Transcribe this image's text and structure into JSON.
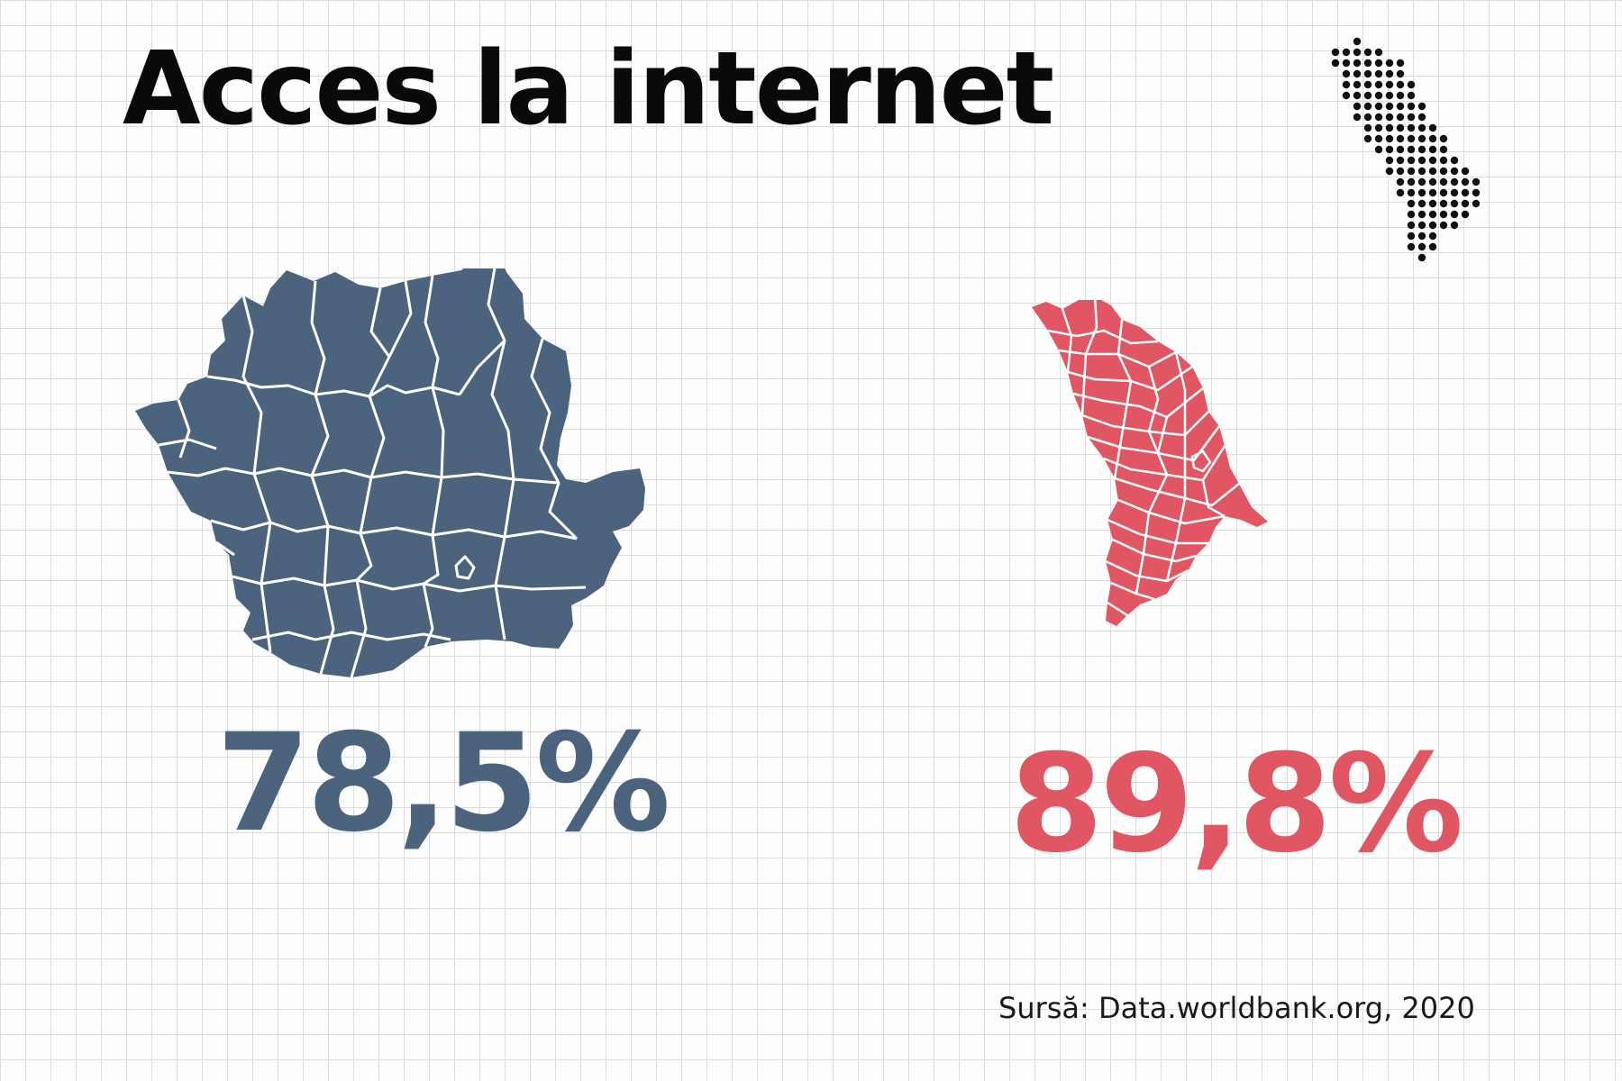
{
  "title": "Acces la internet",
  "colors": {
    "romania": "#4b637d",
    "moldova": "#e05663",
    "title": "#0a0a0a",
    "border_lines": "#ffffff"
  },
  "icons": {
    "logo": "moldova-dot-map-icon",
    "romania_map": "romania-counties-map-icon",
    "moldova_map": "moldova-districts-map-icon"
  },
  "stats": {
    "romania": {
      "value": 78.5,
      "label": "78,5%"
    },
    "moldova": {
      "value": 89.8,
      "label": "89,8%"
    }
  },
  "source": "Sursă: Data.worldbank.org, 2020"
}
